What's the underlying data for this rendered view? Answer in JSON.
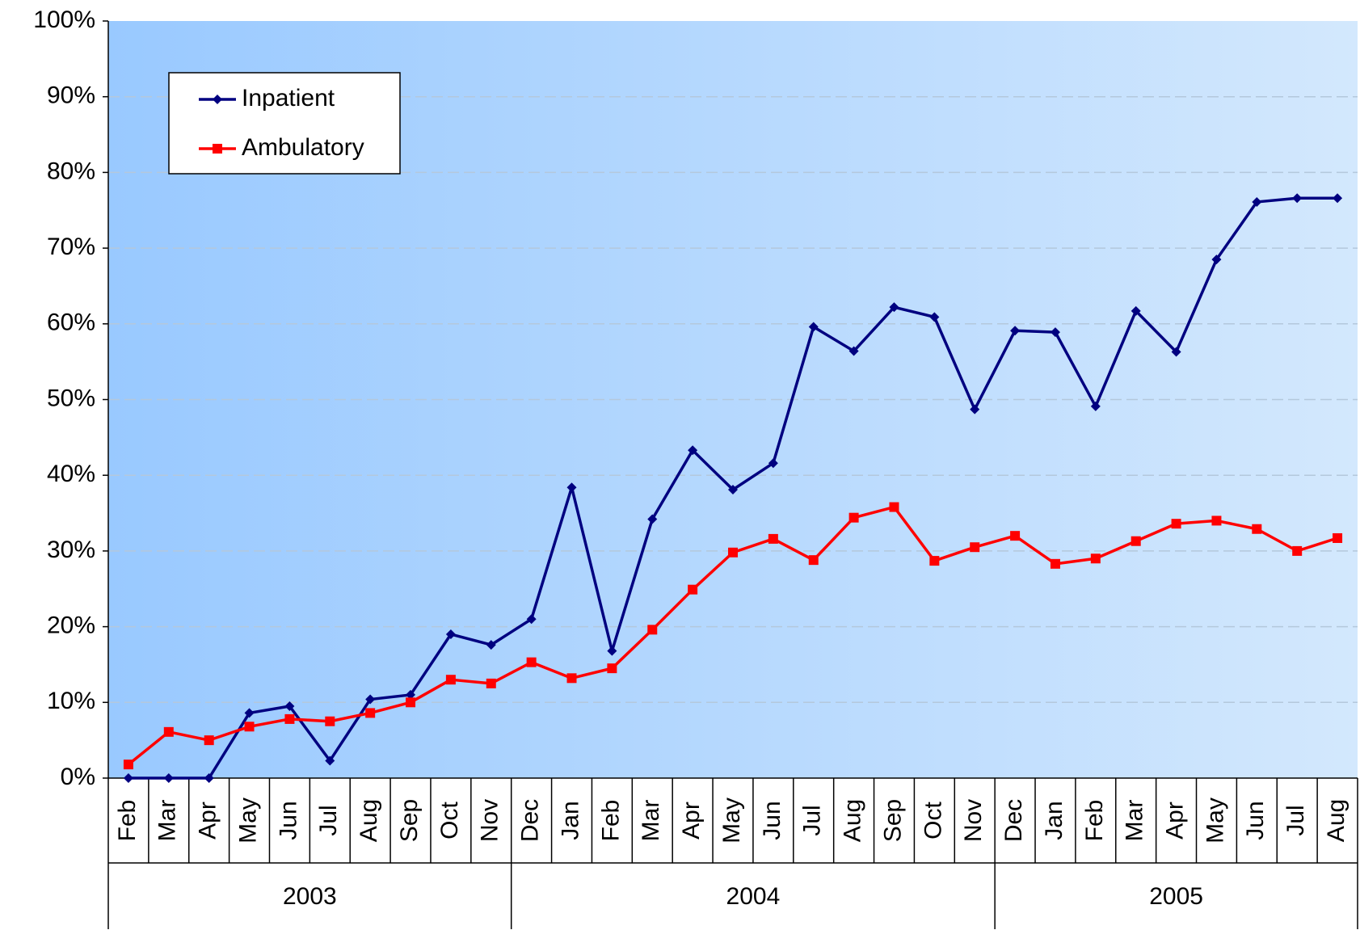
{
  "chart_data": {
    "type": "line",
    "category_groups": [
      {
        "label": "2003",
        "categories": [
          "Feb",
          "Mar",
          "Apr",
          "May",
          "Jun",
          "Jul",
          "Aug",
          "Sep",
          "Oct",
          "Nov"
        ]
      },
      {
        "label": "2004",
        "categories": [
          "Dec",
          "Jan",
          "Feb",
          "Mar",
          "Apr",
          "May",
          "Jun",
          "Jul",
          "Aug",
          "Sep",
          "Oct",
          "Nov"
        ]
      },
      {
        "label": "2005",
        "categories": [
          "Dec",
          "Jan",
          "Feb",
          "Mar",
          "Apr",
          "May",
          "Jun",
          "Jul",
          "Aug"
        ]
      }
    ],
    "series": [
      {
        "name": "Inpatient",
        "color": "#000080",
        "marker": "diamond",
        "values": [
          0,
          0,
          0,
          8.6,
          9.5,
          2.3,
          10.4,
          11,
          19,
          17.6,
          21,
          38.4,
          16.8,
          34.2,
          43.3,
          38.1,
          41.6,
          59.6,
          56.4,
          62.2,
          60.9,
          48.7,
          59.1,
          58.9,
          49.1,
          61.7,
          56.3,
          68.5,
          76.1,
          76.6,
          76.6
        ]
      },
      {
        "name": "Ambulatory",
        "color": "#ff0000",
        "marker": "square",
        "values": [
          1.8,
          6.1,
          5.0,
          6.8,
          7.8,
          7.5,
          8.6,
          10.0,
          13.0,
          12.5,
          15.3,
          13.2,
          14.5,
          19.6,
          24.9,
          29.8,
          31.6,
          28.8,
          34.4,
          35.8,
          28.7,
          30.5,
          32.0,
          28.3,
          29.0,
          31.3,
          33.6,
          34.0,
          32.9,
          30.0,
          31.7
        ]
      }
    ],
    "ylim": [
      0,
      100
    ],
    "yticks": [
      {
        "value": 0,
        "label": "0%"
      },
      {
        "value": 10,
        "label": "10%"
      },
      {
        "value": 20,
        "label": "20%"
      },
      {
        "value": 30,
        "label": "30%"
      },
      {
        "value": 40,
        "label": "40%"
      },
      {
        "value": 50,
        "label": "50%"
      },
      {
        "value": 60,
        "label": "60%"
      },
      {
        "value": 70,
        "label": "70%"
      },
      {
        "value": 80,
        "label": "80%"
      },
      {
        "value": 90,
        "label": "90%"
      },
      {
        "value": 100,
        "label": "100%"
      }
    ],
    "grid": true,
    "legend": "upper left"
  }
}
